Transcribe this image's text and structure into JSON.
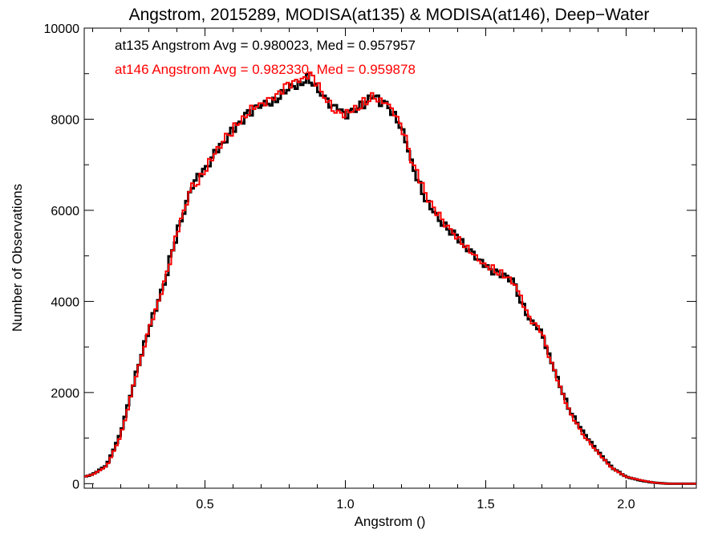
{
  "chart_data": {
    "type": "step",
    "title": "Angstrom, 2015289, MODISA(at135) & MODISA(at146), Deep−Water",
    "xlabel": "Angstrom ()",
    "ylabel": "Number of Observations",
    "xlim": [
      0.07,
      2.25
    ],
    "ylim": [
      -100,
      10000
    ],
    "xticks": [
      0.5,
      1.0,
      1.5,
      2.0
    ],
    "xtick_labels": [
      "0.5",
      "1.0",
      "1.5",
      "2.0"
    ],
    "yticks": [
      0,
      2000,
      4000,
      6000,
      8000,
      10000
    ],
    "ytick_labels": [
      "0",
      "2000",
      "4000",
      "6000",
      "8000",
      "10000"
    ],
    "grid": false,
    "legend_position": "top-left",
    "x": [
      0.07,
      0.1,
      0.15,
      0.2,
      0.25,
      0.3,
      0.35,
      0.4,
      0.45,
      0.5,
      0.55,
      0.6,
      0.65,
      0.7,
      0.75,
      0.8,
      0.85,
      0.875,
      0.9,
      0.95,
      1.0,
      1.05,
      1.1,
      1.15,
      1.2,
      1.25,
      1.3,
      1.35,
      1.4,
      1.45,
      1.5,
      1.55,
      1.6,
      1.65,
      1.7,
      1.75,
      1.8,
      1.85,
      1.9,
      1.95,
      2.0,
      2.05,
      2.1,
      2.15,
      2.2,
      2.25
    ],
    "series": [
      {
        "name": "at135",
        "color": "#000000",
        "values": [
          150,
          200,
          400,
          1100,
          2300,
          3400,
          4300,
          5500,
          6500,
          6900,
          7350,
          7750,
          8100,
          8300,
          8450,
          8700,
          8850,
          8900,
          8700,
          8300,
          8100,
          8250,
          8500,
          8300,
          7800,
          6800,
          6100,
          5700,
          5350,
          5050,
          4750,
          4600,
          4400,
          3700,
          3300,
          2400,
          1600,
          1100,
          700,
          350,
          150,
          70,
          20,
          0,
          0,
          0
        ]
      },
      {
        "name": "at146",
        "color": "#ff0000",
        "values": [
          150,
          200,
          380,
          1050,
          2250,
          3350,
          4250,
          5450,
          6450,
          6880,
          7400,
          7780,
          8150,
          8330,
          8500,
          8750,
          8900,
          8950,
          8750,
          8250,
          8100,
          8300,
          8550,
          8350,
          7850,
          6850,
          6150,
          5750,
          5400,
          5100,
          4800,
          4650,
          4450,
          3700,
          3300,
          2350,
          1550,
          1050,
          680,
          340,
          150,
          80,
          20,
          0,
          0,
          0
        ]
      }
    ],
    "legend": [
      {
        "label": "at135 Angstrom Avg = 0.980023, Med = 0.957957",
        "color": "#000000"
      },
      {
        "label": "at146 Angstrom Avg = 0.982330, Med = 0.959878",
        "color": "#ff0000"
      }
    ]
  }
}
